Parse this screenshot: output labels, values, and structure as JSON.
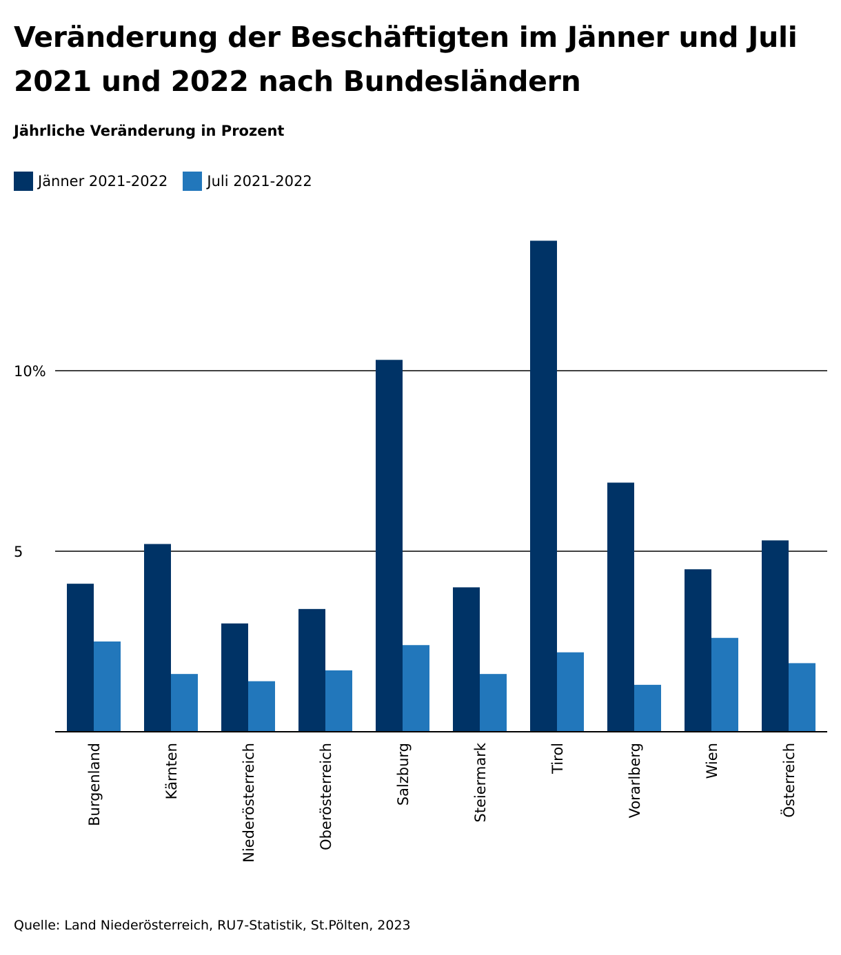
{
  "header": {
    "title": "Veränderung der Beschäftigten im Jänner und Juli 2021 und 2022 nach Bundesländern",
    "subtitle": "Jährliche Veränderung in Prozent"
  },
  "footer": {
    "source": "Quelle: Land Niederösterreich, RU7-Statistik, St.Pölten, 2023"
  },
  "colors": {
    "series_0": "#003366",
    "series_1": "#2277bb"
  },
  "chart_data": {
    "type": "bar",
    "title": "Veränderung der Beschäftigten im Jänner und Juli 2021 und 2022 nach Bundesländern",
    "subtitle": "Jährliche Veränderung in Prozent",
    "categories": [
      "Burgenland",
      "Kärnten",
      "Niederösterreich",
      "Oberösterreich",
      "Salzburg",
      "Steiermark",
      "Tirol",
      "Vorarlberg",
      "Wien",
      "Österreich"
    ],
    "series": [
      {
        "name": "Jänner 2021-2022",
        "values": [
          4.1,
          5.2,
          3.0,
          3.4,
          10.3,
          4.0,
          13.6,
          6.9,
          4.5,
          5.3
        ]
      },
      {
        "name": "Juli 2021-2022",
        "values": [
          2.5,
          1.6,
          1.4,
          1.7,
          2.4,
          1.6,
          2.2,
          1.3,
          2.6,
          1.9
        ]
      }
    ],
    "ylim": [
      0,
      14
    ],
    "yticks": [
      {
        "value": 5,
        "label": "5"
      },
      {
        "value": 10,
        "label": "10%"
      }
    ],
    "xlabel": "",
    "ylabel": "",
    "grid": true,
    "legend_position": "top-left"
  }
}
